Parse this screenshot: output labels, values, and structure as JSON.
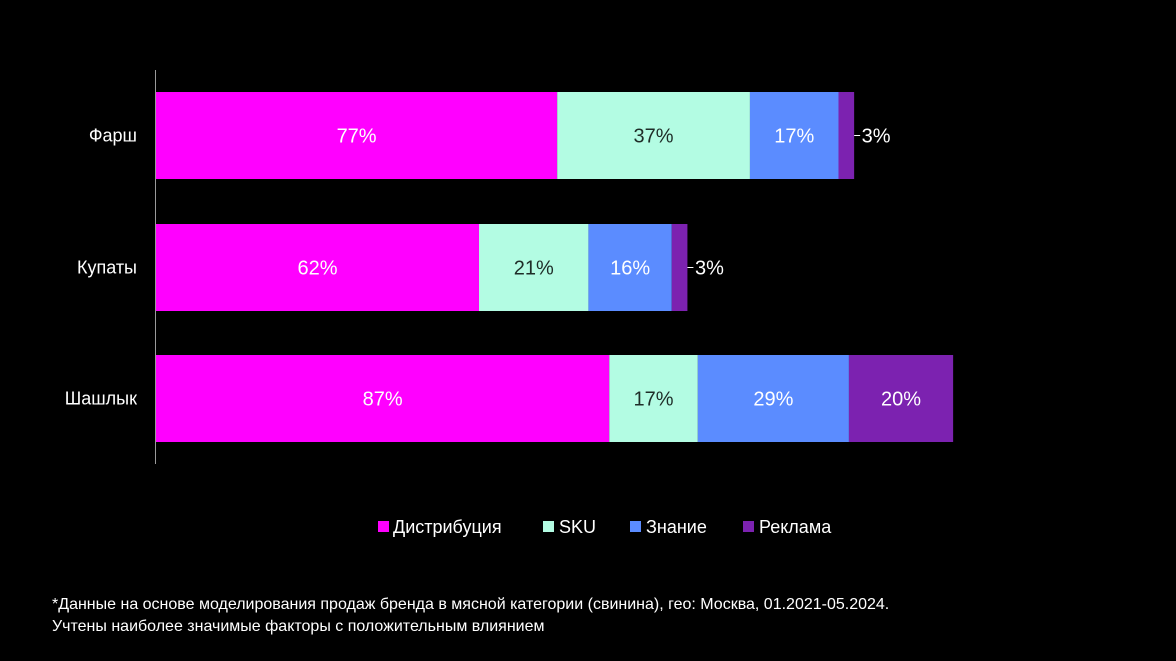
{
  "chart_data": {
    "type": "bar",
    "orientation": "horizontal",
    "stacked": true,
    "categories": [
      "Фарш",
      "Купаты",
      "Шашлык"
    ],
    "series": [
      {
        "name": "Дистрибуция",
        "color": "#ff00ff",
        "values": [
          77,
          62,
          87
        ],
        "labels": [
          "77%",
          "62%",
          "87%"
        ]
      },
      {
        "name": "SKU",
        "color": "#b3fce3",
        "values": [
          37,
          21,
          17
        ],
        "labels": [
          "37%",
          "21%",
          "17%"
        ]
      },
      {
        "name": "Знание",
        "color": "#5b8cff",
        "values": [
          17,
          16,
          29
        ],
        "labels": [
          "17%",
          "16%",
          "29%"
        ]
      },
      {
        "name": "Реклама",
        "color": "#7c22b0",
        "values": [
          3,
          3,
          20
        ],
        "labels": [
          "3%",
          "3%",
          "20%"
        ]
      }
    ],
    "xlim": [
      0,
      225
    ],
    "grid": false,
    "legend_position": "bottom"
  },
  "footnote": {
    "line1": "*Данные на основе моделирования продаж бренда в мясной категории (свинина), гео: Москва, 01.2021-05.2024.",
    "line2": "Учтены наиболее значимые факторы с положительным влиянием"
  }
}
